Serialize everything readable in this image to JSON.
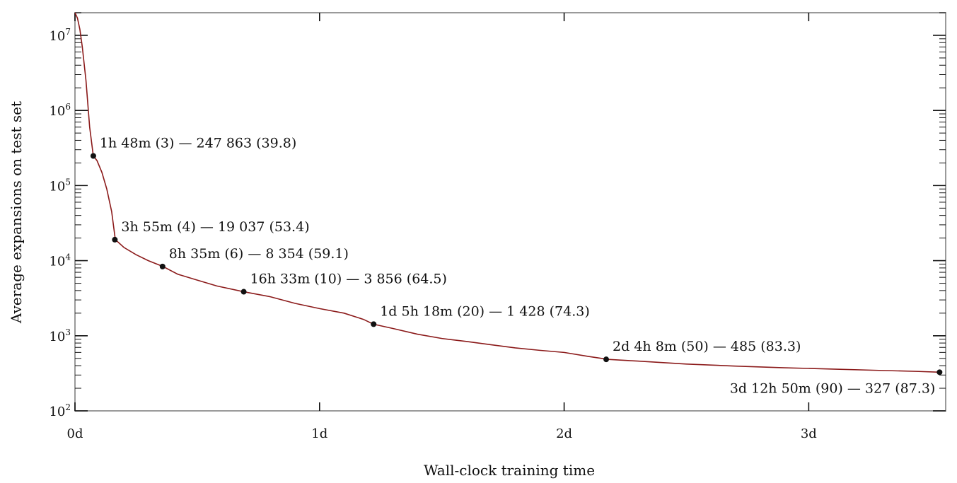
{
  "chart_data": {
    "type": "line",
    "xlabel": "Wall-clock training time",
    "ylabel": "Average expansions on test set",
    "y_scale": "log",
    "xlim_days": [
      0,
      3.56
    ],
    "ylim": [
      100,
      20000000
    ],
    "x_ticks": [
      {
        "value": 0,
        "label": "0d"
      },
      {
        "value": 1,
        "label": "1d"
      },
      {
        "value": 2,
        "label": "2d"
      },
      {
        "value": 3,
        "label": "3d"
      }
    ],
    "y_ticks": [
      {
        "value": 100,
        "base": "10",
        "exp": "2"
      },
      {
        "value": 1000,
        "base": "10",
        "exp": "3"
      },
      {
        "value": 10000,
        "base": "10",
        "exp": "4"
      },
      {
        "value": 100000,
        "base": "10",
        "exp": "5"
      },
      {
        "value": 1000000,
        "base": "10",
        "exp": "6"
      },
      {
        "value": 10000000,
        "base": "10",
        "exp": "7"
      }
    ],
    "grid": false,
    "color": "#8b1a1a",
    "series": [
      {
        "x_days": [
          0,
          0.01,
          0.02,
          0.03,
          0.045,
          0.06,
          0.075,
          0.09,
          0.11,
          0.13,
          0.15,
          0.165,
          0.2,
          0.25,
          0.3,
          0.36,
          0.42,
          0.5,
          0.58,
          0.69,
          0.8,
          0.9,
          1.0,
          1.1,
          1.18,
          1.22,
          1.3,
          1.4,
          1.5,
          1.6,
          1.7,
          1.8,
          1.9,
          2.0,
          2.1,
          2.18,
          2.3,
          2.5,
          2.7,
          2.9,
          3.1,
          3.3,
          3.45,
          3.535
        ],
        "y": [
          20000000,
          17000000,
          12000000,
          7000000,
          2500000,
          600000,
          247863,
          215000,
          150000,
          90000,
          45000,
          19037,
          15000,
          12000,
          10000,
          8354,
          6600,
          5500,
          4600,
          3856,
          3300,
          2700,
          2300,
          2000,
          1650,
          1428,
          1250,
          1050,
          920,
          840,
          760,
          690,
          640,
          600,
          530,
          485,
          460,
          420,
          395,
          375,
          360,
          345,
          335,
          327
        ]
      }
    ],
    "annotations": [
      {
        "x_days": 0.075,
        "y": 247863,
        "text": "1h 48m (3) — 247 863 (39.8)",
        "align": "right"
      },
      {
        "x_days": 0.163,
        "y": 19037,
        "text": "3h 55m (4) — 19 037 (53.4)",
        "align": "right"
      },
      {
        "x_days": 0.358,
        "y": 8354,
        "text": "8h 35m (6) — 8 354 (59.1)",
        "align": "right"
      },
      {
        "x_days": 0.69,
        "y": 3856,
        "text": "16h 33m (10) — 3 856 (64.5)",
        "align": "right"
      },
      {
        "x_days": 1.221,
        "y": 1428,
        "text": "1d 5h 18m (20) — 1 428 (74.3)",
        "align": "right"
      },
      {
        "x_days": 2.172,
        "y": 485,
        "text": "2d 4h 8m (50) — 485 (83.3)",
        "align": "right"
      },
      {
        "x_days": 3.535,
        "y": 327,
        "text": "3d 12h 50m (90) — 327 (87.3)",
        "align": "left-below"
      }
    ]
  }
}
